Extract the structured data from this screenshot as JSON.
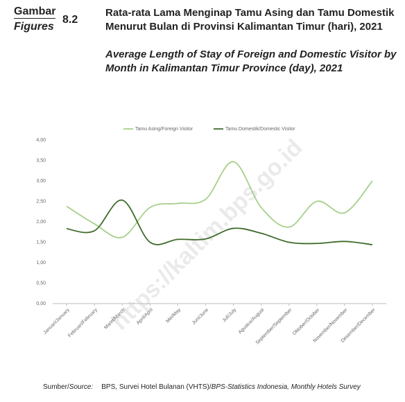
{
  "header": {
    "label_id": "Gambar",
    "label_en": "Figures",
    "number": "8.2",
    "title_id": "Rata-rata Lama Menginap Tamu Asing dan Tamu Domestik Menurut Bulan di Provinsi Kalimantan Timur (hari), 2021",
    "title_en": "Average Length of Stay of Foreign and Domestic Visitor by Month in Kalimantan Timur Province (day), 2021"
  },
  "chart_data": {
    "type": "line",
    "categories": [
      "Januari/January",
      "Februari/February",
      "Maret/March",
      "April/April",
      "Mei/May",
      "Juni/June",
      "Juli/July",
      "Agustus/August",
      "September/September",
      "Oktober/October",
      "November/November",
      "Desember/December"
    ],
    "series": [
      {
        "name": "Tamu Asing/Foreign Visitor",
        "color": "#a6cf8a",
        "values": [
          2.38,
          1.95,
          1.62,
          2.35,
          2.45,
          2.55,
          3.47,
          2.35,
          1.87,
          2.5,
          2.22,
          3.0
        ]
      },
      {
        "name": "Tamu Domestik/Domestic Visitor",
        "color": "#3e6b2a",
        "values": [
          1.83,
          1.78,
          2.53,
          1.5,
          1.57,
          1.58,
          1.84,
          1.72,
          1.5,
          1.47,
          1.52,
          1.44
        ]
      }
    ],
    "ylim": [
      0,
      4
    ],
    "yticks": [
      {
        "value": 0,
        "label": "0,00"
      },
      {
        "value": 0.5,
        "label": "0,50"
      },
      {
        "value": 1,
        "label": "1,00"
      },
      {
        "value": 1.5,
        "label": "1,50"
      },
      {
        "value": 2,
        "label": "2,00"
      },
      {
        "value": 2.5,
        "label": "2,50"
      },
      {
        "value": 3,
        "label": "3,00"
      },
      {
        "value": 3.5,
        "label": "3,50"
      },
      {
        "value": 4,
        "label": "4,00"
      }
    ],
    "grid": false,
    "legend": "top"
  },
  "watermark": "https://kaltim.bps.go.id",
  "source": {
    "label_id": "Sumber/",
    "label_en": "Source:",
    "text_id": "BPS, Survei Hotel Bulanan (VHTS)/",
    "text_en": "BPS-Statistics Indonesia, Monthly Hotels Survey"
  }
}
